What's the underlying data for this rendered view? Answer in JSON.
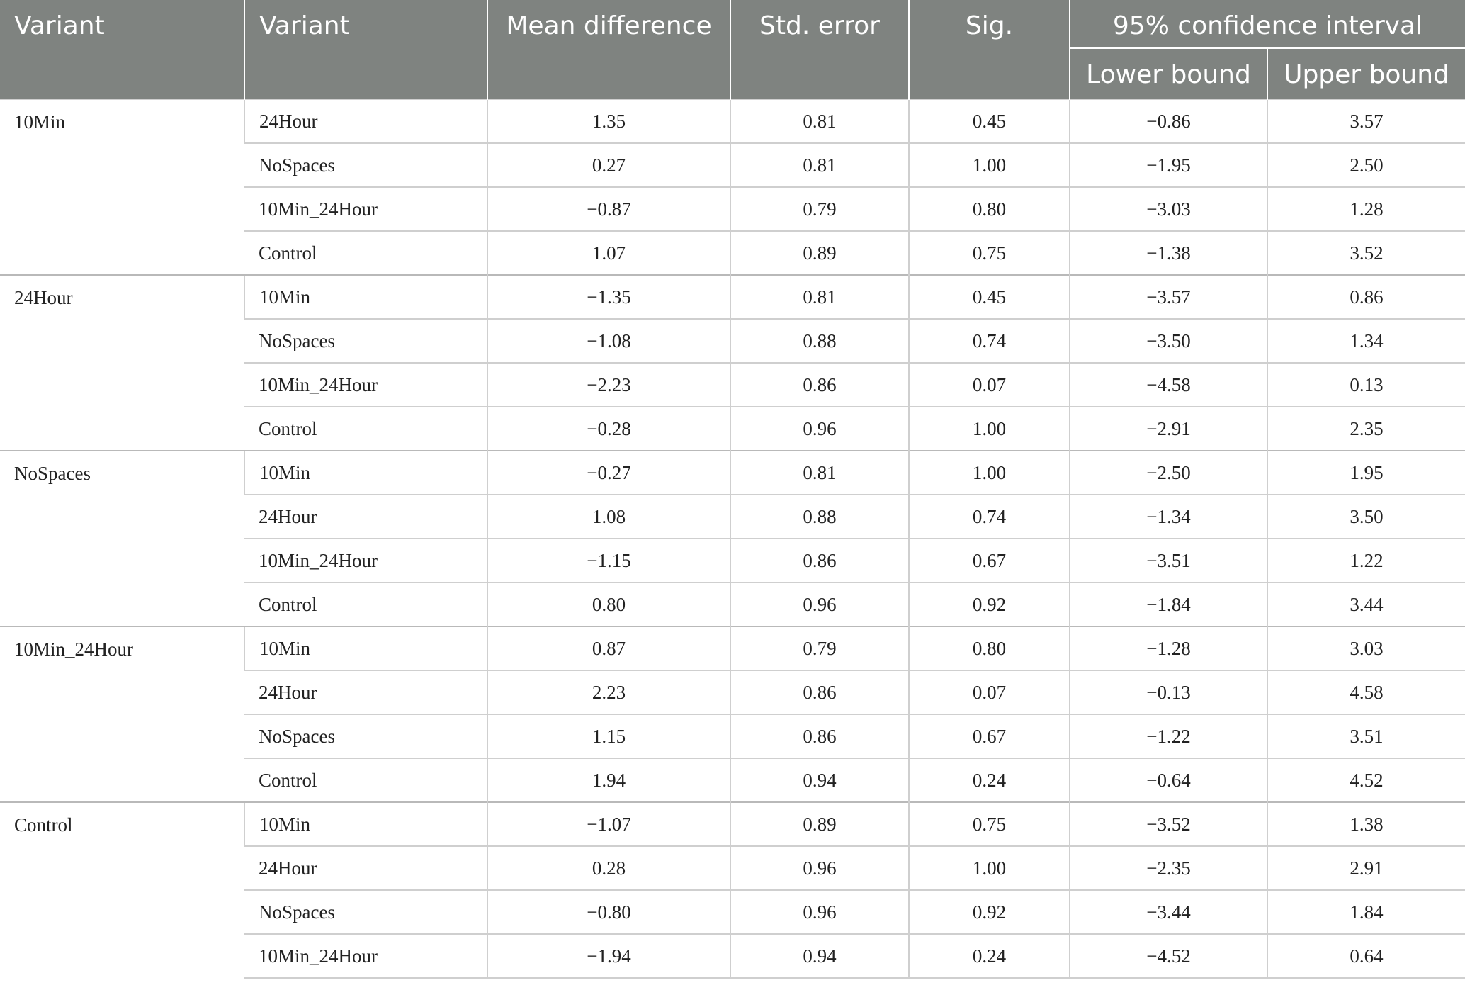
{
  "header": {
    "col1": "Variant",
    "col2": "Variant",
    "col3": "Mean difference",
    "col4": "Std. error",
    "col5": "Sig.",
    "ci": "95% confidence interval",
    "lower": "Lower bound",
    "upper": "Upper bound"
  },
  "groups": [
    {
      "name": "10Min",
      "rows": [
        [
          "24Hour",
          "1.35",
          "0.81",
          "0.45",
          "−0.86",
          "3.57"
        ],
        [
          "NoSpaces",
          "0.27",
          "0.81",
          "1.00",
          "−1.95",
          "2.50"
        ],
        [
          "10Min_24Hour",
          "−0.87",
          "0.79",
          "0.80",
          "−3.03",
          "1.28"
        ],
        [
          "Control",
          "1.07",
          "0.89",
          "0.75",
          "−1.38",
          "3.52"
        ]
      ]
    },
    {
      "name": "24Hour",
      "rows": [
        [
          "10Min",
          "−1.35",
          "0.81",
          "0.45",
          "−3.57",
          "0.86"
        ],
        [
          "NoSpaces",
          "−1.08",
          "0.88",
          "0.74",
          "−3.50",
          "1.34"
        ],
        [
          "10Min_24Hour",
          "−2.23",
          "0.86",
          "0.07",
          "−4.58",
          "0.13"
        ],
        [
          "Control",
          "−0.28",
          "0.96",
          "1.00",
          "−2.91",
          "2.35"
        ]
      ]
    },
    {
      "name": "NoSpaces",
      "rows": [
        [
          "10Min",
          "−0.27",
          "0.81",
          "1.00",
          "−2.50",
          "1.95"
        ],
        [
          "24Hour",
          "1.08",
          "0.88",
          "0.74",
          "−1.34",
          "3.50"
        ],
        [
          "10Min_24Hour",
          "−1.15",
          "0.86",
          "0.67",
          "−3.51",
          "1.22"
        ],
        [
          "Control",
          "0.80",
          "0.96",
          "0.92",
          "−1.84",
          "3.44"
        ]
      ]
    },
    {
      "name": "10Min_24Hour",
      "rows": [
        [
          "10Min",
          "0.87",
          "0.79",
          "0.80",
          "−1.28",
          "3.03"
        ],
        [
          "24Hour",
          "2.23",
          "0.86",
          "0.07",
          "−0.13",
          "4.58"
        ],
        [
          "NoSpaces",
          "1.15",
          "0.86",
          "0.67",
          "−1.22",
          "3.51"
        ],
        [
          "Control",
          "1.94",
          "0.94",
          "0.24",
          "−0.64",
          "4.52"
        ]
      ]
    },
    {
      "name": "Control",
      "rows": [
        [
          "10Min",
          "−1.07",
          "0.89",
          "0.75",
          "−3.52",
          "1.38"
        ],
        [
          "24Hour",
          "0.28",
          "0.96",
          "1.00",
          "−2.35",
          "2.91"
        ],
        [
          "NoSpaces",
          "−0.80",
          "0.96",
          "0.92",
          "−3.44",
          "1.84"
        ],
        [
          "10Min_24Hour",
          "−1.94",
          "0.94",
          "0.24",
          "−4.52",
          "0.64"
        ]
      ]
    }
  ]
}
